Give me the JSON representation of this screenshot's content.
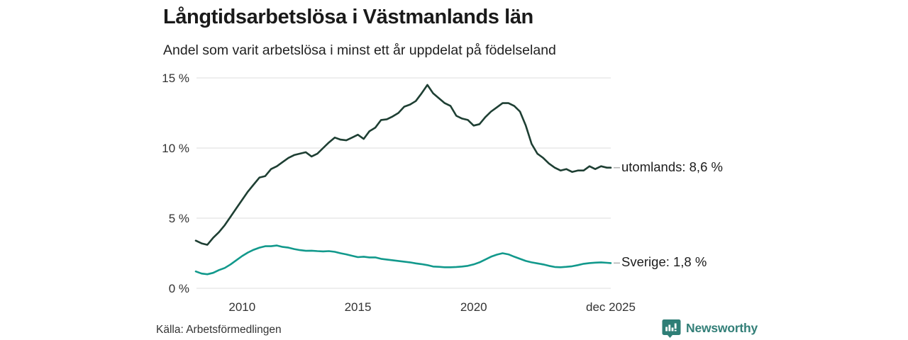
{
  "header": {
    "title": "Långtidsarbetslösa i Västmanlands län",
    "subtitle": "Andel som varit arbetslösa i minst ett år uppdelat på födelseland"
  },
  "footer": {
    "source": "Källa: Arbetsförmedlingen",
    "brand": "Newsworthy"
  },
  "colors": {
    "utomlands": "#1e3f33",
    "sverige": "#12998c",
    "grid": "#dcdcdc",
    "tick_text": "#333333",
    "connector": "#b5b5b5",
    "brand": "#2e7e76"
  },
  "chart_data": {
    "type": "line",
    "title": "Långtidsarbetslösa i Västmanlands län",
    "subtitle": "Andel som varit arbetslösa i minst ett år uppdelat på födelseland",
    "xlabel": "",
    "ylabel": "",
    "unit": "%",
    "grid": true,
    "legend_position": "end-of-line-labels",
    "ylim": [
      0,
      15
    ],
    "x_start": 2008.0,
    "x_step": 0.25,
    "x_last": 2025.92,
    "yticks": [
      {
        "v": 15,
        "label": "15 %"
      },
      {
        "v": 10,
        "label": "10 %"
      },
      {
        "v": 5,
        "label": "5 %"
      },
      {
        "v": 0,
        "label": "0 %"
      }
    ],
    "xticks": [
      {
        "v": 2010,
        "label": "2010"
      },
      {
        "v": 2015,
        "label": "2015"
      },
      {
        "v": 2020,
        "label": "2020"
      },
      {
        "v": 2025.92,
        "label": "dec 2025"
      }
    ],
    "series": [
      {
        "name": "utomlands",
        "label": "utomlands: 8,6 %",
        "end_value_text": "8,6 %",
        "color": "#1e3f33",
        "values": [
          3.4,
          3.2,
          3.1,
          3.6,
          4.0,
          4.5,
          5.1,
          5.7,
          6.3,
          6.9,
          7.4,
          7.9,
          8.0,
          8.5,
          8.7,
          9.0,
          9.3,
          9.5,
          9.6,
          9.7,
          9.4,
          9.6,
          10.0,
          10.4,
          10.75,
          10.6,
          10.55,
          10.75,
          10.95,
          10.65,
          11.2,
          11.45,
          12.0,
          12.05,
          12.25,
          12.5,
          12.95,
          13.1,
          13.35,
          13.9,
          14.5,
          13.9,
          13.55,
          13.2,
          13.0,
          12.3,
          12.1,
          12.0,
          11.6,
          11.7,
          12.2,
          12.6,
          12.9,
          13.2,
          13.2,
          13.0,
          12.6,
          11.6,
          10.3,
          9.6,
          9.3,
          8.9,
          8.6,
          8.4,
          8.5,
          8.3,
          8.4,
          8.4,
          8.7,
          8.5,
          8.7,
          8.6,
          8.6
        ]
      },
      {
        "name": "sverige",
        "label": "Sverige: 1,8 %",
        "end_value_text": "1,8 %",
        "color": "#12998c",
        "values": [
          1.2,
          1.05,
          1.0,
          1.1,
          1.3,
          1.45,
          1.7,
          2.0,
          2.3,
          2.55,
          2.75,
          2.9,
          3.0,
          3.0,
          3.05,
          2.95,
          2.9,
          2.8,
          2.72,
          2.67,
          2.68,
          2.65,
          2.63,
          2.65,
          2.6,
          2.5,
          2.42,
          2.32,
          2.22,
          2.25,
          2.2,
          2.2,
          2.1,
          2.05,
          2.0,
          1.95,
          1.9,
          1.85,
          1.78,
          1.72,
          1.65,
          1.55,
          1.53,
          1.5,
          1.5,
          1.52,
          1.55,
          1.6,
          1.7,
          1.85,
          2.05,
          2.25,
          2.4,
          2.5,
          2.42,
          2.25,
          2.1,
          1.95,
          1.85,
          1.78,
          1.7,
          1.6,
          1.52,
          1.5,
          1.53,
          1.57,
          1.65,
          1.75,
          1.8,
          1.83,
          1.85,
          1.82,
          1.8
        ]
      }
    ]
  }
}
